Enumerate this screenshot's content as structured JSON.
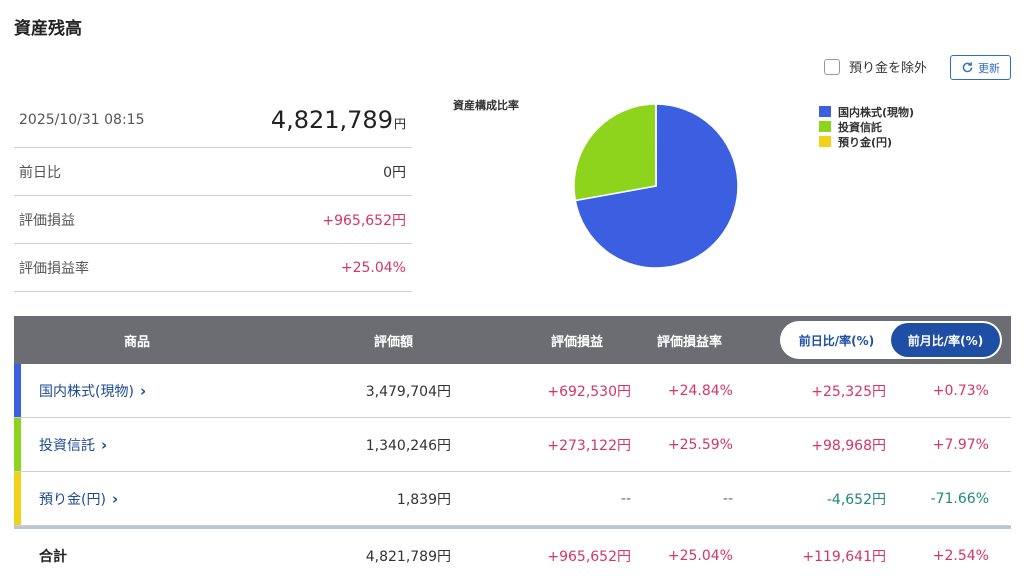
{
  "header": {
    "title": "資産残高"
  },
  "controls": {
    "exclude_label": "預り金を除外",
    "refresh_label": "更新"
  },
  "summary": {
    "datetime": "2025/10/31 08:15",
    "total_value": "4,821,789",
    "total_unit": "円",
    "rows": [
      {
        "label": "前日比",
        "value": "0円"
      },
      {
        "label": "評価損益",
        "value": "+965,652円"
      },
      {
        "label": "評価損益率",
        "value": "+25.04%"
      }
    ]
  },
  "pie": {
    "title": "資産構成比率",
    "legend": [
      {
        "label": "国内株式(現物)",
        "color": "#3b5fe0"
      },
      {
        "label": "投資信託",
        "color": "#8fd41c"
      },
      {
        "label": "預り金(円)",
        "color": "#f2d11a"
      }
    ]
  },
  "chart_data": {
    "type": "pie",
    "title": "資産構成比率",
    "categories": [
      "国内株式(現物)",
      "投資信託",
      "預り金(円)"
    ],
    "values": [
      3479704,
      1340246,
      1839
    ],
    "colors": [
      "#3b5fe0",
      "#8fd41c",
      "#f2d11a"
    ],
    "legend": "top-right"
  },
  "table": {
    "headers": {
      "product": "商品",
      "value": "評価額",
      "pl": "評価損益",
      "pl_rate": "評価損益率"
    },
    "toggle": {
      "day_label": "前日比/率(%)",
      "month_label": "前月比/率(%)"
    },
    "rows": [
      {
        "name": "国内株式(現物)",
        "chevron": "›",
        "color": "#3b5fe0",
        "value": "3,479,704円",
        "pl": "+692,530円",
        "pl_rate": "+24.84%",
        "diff": "+25,325円",
        "diff_rate": "+0.73%"
      },
      {
        "name": "投資信託",
        "chevron": "›",
        "color": "#8fd41c",
        "value": "1,340,246円",
        "pl": "+273,122円",
        "pl_rate": "+25.59%",
        "diff": "+98,968円",
        "diff_rate": "+7.97%"
      },
      {
        "name": "預り金(円)",
        "chevron": "›",
        "color": "#f2d11a",
        "value": "1,839円",
        "pl": "--",
        "pl_rate": "--",
        "diff": "-4,652円",
        "diff_rate": "-71.66%"
      }
    ],
    "total": {
      "name": "合計",
      "value": "4,821,789円",
      "pl": "+965,652円",
      "pl_rate": "+25.04%",
      "diff": "+119,641円",
      "diff_rate": "+2.54%"
    }
  }
}
